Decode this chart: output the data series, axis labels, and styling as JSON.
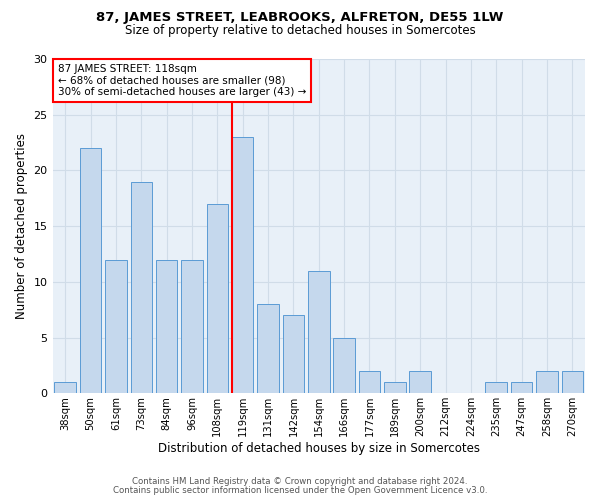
{
  "title1": "87, JAMES STREET, LEABROOKS, ALFRETON, DE55 1LW",
  "title2": "Size of property relative to detached houses in Somercotes",
  "xlabel": "Distribution of detached houses by size in Somercotes",
  "ylabel": "Number of detached properties",
  "categories": [
    "38sqm",
    "50sqm",
    "61sqm",
    "73sqm",
    "84sqm",
    "96sqm",
    "108sqm",
    "119sqm",
    "131sqm",
    "142sqm",
    "154sqm",
    "166sqm",
    "177sqm",
    "189sqm",
    "200sqm",
    "212sqm",
    "224sqm",
    "235sqm",
    "247sqm",
    "258sqm",
    "270sqm"
  ],
  "values": [
    1,
    22,
    12,
    19,
    12,
    12,
    17,
    23,
    8,
    7,
    11,
    5,
    2,
    1,
    2,
    0,
    0,
    1,
    1,
    2,
    2
  ],
  "bar_color": "#c5d8ed",
  "bar_edge_color": "#5b9bd5",
  "highlight_index": 7,
  "annotation_line1": "87 JAMES STREET: 118sqm",
  "annotation_line2": "← 68% of detached houses are smaller (98)",
  "annotation_line3": "30% of semi-detached houses are larger (43) →",
  "annotation_box_color": "white",
  "annotation_box_edge_color": "red",
  "vline_color": "red",
  "ylim": [
    0,
    30
  ],
  "yticks": [
    0,
    5,
    10,
    15,
    20,
    25,
    30
  ],
  "footer1": "Contains HM Land Registry data © Crown copyright and database right 2024.",
  "footer2": "Contains public sector information licensed under the Open Government Licence v3.0.",
  "grid_color": "#d0dce8",
  "background_color": "#e8f0f8"
}
